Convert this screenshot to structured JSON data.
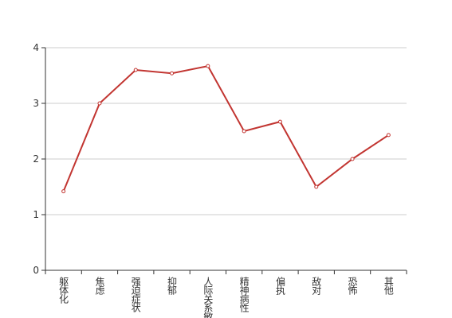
{
  "chart_data": {
    "type": "line",
    "categories": [
      "躯体化",
      "焦虑",
      "强迫症状",
      "抑郁",
      "人际关系敏感",
      "精神病性",
      "偏执",
      "敌对",
      "恐怖",
      "其他"
    ],
    "values": [
      1.42,
      3.0,
      3.6,
      3.54,
      3.67,
      2.5,
      2.67,
      1.5,
      2.0,
      2.43
    ],
    "color": "#c23531",
    "ylim": [
      0,
      4
    ],
    "yticks": [
      0,
      1,
      2,
      3,
      4
    ],
    "grid": true
  }
}
